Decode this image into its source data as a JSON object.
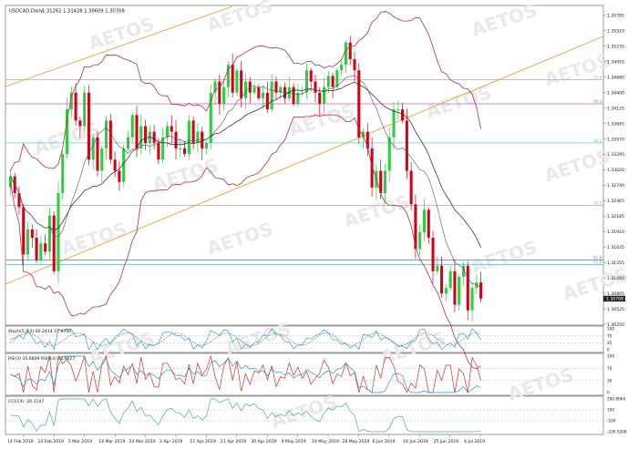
{
  "header": {
    "symbol_tf": "USDCAD,Daily",
    "ohlc": "1.31262 1.31428 1.30609 1.30708"
  },
  "watermark": "AETOS",
  "colors": {
    "bull": "#2ecc40",
    "bear": "#d0021b",
    "bollinger": "#b03040",
    "ma": "#222222",
    "channel": "#e8a040",
    "fib_cyan": "#6ec4d8",
    "fib_magenta": "#c060c0",
    "stoch_main": "#3aa8a0",
    "stoch_signal": "#5b6fb0",
    "rsi_fast": "#c0392b",
    "rsi_slow": "#3a8fc0",
    "cci": "#4aa8b0"
  },
  "chart_data": {
    "type": "candlestick",
    "price_axis": {
      "ticks": [
        "1.35785",
        "1.35510",
        "1.35235",
        "1.34955",
        "1.34680",
        "1.34400",
        "1.34125",
        "1.33845",
        "1.33570",
        "1.33295",
        "1.33020",
        "1.32740",
        "1.32465",
        "1.32185",
        "1.31910",
        "1.31635",
        "1.31355",
        "1.31080",
        "1.30805",
        "1.30525",
        "1.30250"
      ],
      "tick_values": [
        1.35785,
        1.3551,
        1.35235,
        1.34955,
        1.3468,
        1.344,
        1.34125,
        1.33845,
        1.3357,
        1.33295,
        1.3302,
        1.3274,
        1.32465,
        1.32185,
        1.3191,
        1.31635,
        1.31355,
        1.3108,
        1.30805,
        1.30525,
        1.3025
      ],
      "range": [
        1.3025,
        1.3593
      ],
      "last_price": "1.30708"
    },
    "date_labels": [
      "14 Feb 2019",
      "24 Feb 2019",
      "5 Mar 2019",
      "14 Mar 2019",
      "24 Mar 2019",
      "2 Apr 2019",
      "11 Apr 2019",
      "21 Apr 2019",
      "30 Apr 2019",
      "9 May 2019",
      "19 May 2019",
      "28 May 2019",
      "6 Jun 2019",
      "16 Jun 2019",
      "25 Jun 2019",
      "4 Jul 2019"
    ],
    "fib_levels": [
      {
        "label": "23.6",
        "value": 1.3463,
        "color": "cyan"
      },
      {
        "label": "76.4",
        "value": 1.342,
        "color": "magenta"
      },
      {
        "label": "38.2",
        "value": 1.335,
        "color": "cyan"
      },
      {
        "label": "50.0",
        "value": 1.3238,
        "color": "cyan"
      },
      {
        "label": "61.8",
        "value": 1.314,
        "color": "magenta"
      },
      {
        "label": "61.8",
        "value": 1.3132,
        "color": "cyan"
      }
    ],
    "anchors": {
      "closes": [
        1.329,
        1.326,
        1.3235,
        1.315,
        1.3195,
        1.318,
        1.314,
        1.317,
        1.3155,
        1.322,
        1.312,
        1.326,
        1.333,
        1.341,
        1.344,
        1.339,
        1.338,
        1.344,
        1.332,
        1.336,
        1.33,
        1.334,
        1.339,
        1.332,
        1.33,
        1.328,
        1.334,
        1.336,
        1.34,
        1.334,
        1.338,
        1.335,
        1.337,
        1.335,
        1.332,
        1.336,
        1.338,
        1.337,
        1.334,
        1.334,
        1.333,
        1.339,
        1.335,
        1.337,
        1.334,
        1.335,
        1.344,
        1.346,
        1.342,
        1.345,
        1.349,
        1.344,
        1.348,
        1.343,
        1.346,
        1.344,
        1.345,
        1.343,
        1.344,
        1.341,
        1.346,
        1.344,
        1.345,
        1.343,
        1.345,
        1.342,
        1.344,
        1.344,
        1.348,
        1.346,
        1.344,
        1.342,
        1.345,
        1.347,
        1.345,
        1.348,
        1.349,
        1.353,
        1.35,
        1.348,
        1.336,
        1.337,
        1.334,
        1.327,
        1.33,
        1.326,
        1.33,
        1.336,
        1.341,
        1.341,
        1.339,
        1.33,
        1.324,
        1.316,
        1.319,
        1.323,
        1.318,
        1.312,
        1.313,
        1.308,
        1.309,
        1.312,
        1.306,
        1.311,
        1.313,
        1.305,
        1.309,
        1.31,
        1.3071
      ],
      "start_date": "14 Feb 2019"
    },
    "indicators": [
      {
        "label": "Stoch(5,3,3) 60.2414 57.0790",
        "ticks": [
          "100",
          "75",
          "25",
          "0"
        ]
      },
      {
        "label": "RSI(3) 35.6809  RSI(14) 35.9627",
        "ticks": [
          "100",
          "70",
          "30",
          "0"
        ]
      },
      {
        "label": "CCI(14) -26.1147",
        "ticks": [
          "290.8064",
          "100",
          "-100",
          "-230.5208"
        ]
      }
    ]
  }
}
